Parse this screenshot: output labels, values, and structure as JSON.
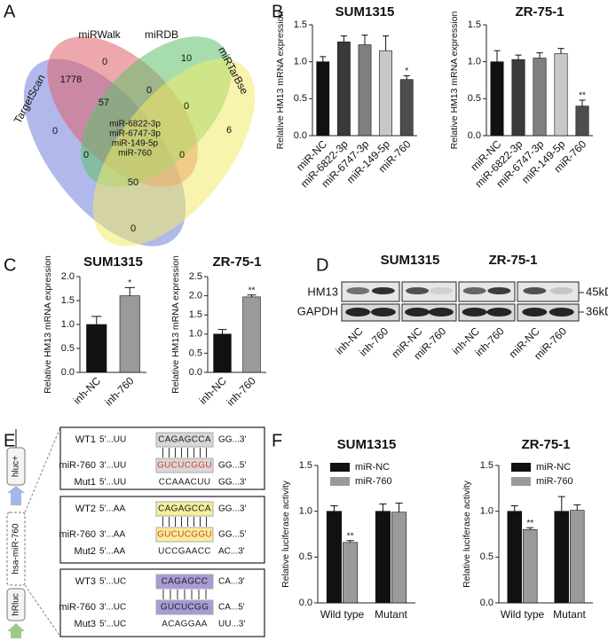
{
  "panel_labels": [
    "A",
    "B",
    "C",
    "D",
    "E",
    "F"
  ],
  "venn": {
    "sets": [
      "TargetScan",
      "miRWalk",
      "miRDB",
      "miRTarBse"
    ],
    "counts": [
      0,
      1778,
      0,
      10,
      57,
      0,
      0,
      6,
      0,
      0,
      50,
      0
    ],
    "shared_mirnas": [
      "miR-6822-3p",
      "miR-6747-3p",
      "miR-149-5p",
      "miR-760"
    ]
  },
  "chart_data": [
    {
      "type": "bar",
      "title": "SUM1315",
      "y_label": "Relative HM13 mRNA expression",
      "categories": [
        "miR-NC",
        "miR-6822-3p",
        "miR-6747-3p",
        "miR-149-5p",
        "miR-760"
      ],
      "values": [
        1.0,
        1.27,
        1.23,
        1.15,
        0.76
      ],
      "errors": [
        0.07,
        0.08,
        0.13,
        0.2,
        0.05
      ],
      "significance": [
        null,
        null,
        null,
        null,
        "*"
      ],
      "colors": [
        "#111111",
        "#3a3a3a",
        "#7f7f7f",
        "#c8c8c8",
        "#4d4d4d"
      ],
      "ylim": [
        0,
        1.5
      ],
      "yticks": [
        {
          "value": 0,
          "label": "0.0"
        },
        0.5,
        {
          "value": 1,
          "label": "1.0"
        },
        1.5
      ]
    },
    {
      "type": "bar",
      "title": "ZR-75-1",
      "y_label": "Relative HM13 mRNA expression",
      "categories": [
        "miR-NC",
        "miR-6822-3p",
        "miR-6747-3p",
        "miR-149-5p",
        "miR-760"
      ],
      "values": [
        1.0,
        1.03,
        1.05,
        1.11,
        0.4
      ],
      "errors": [
        0.15,
        0.06,
        0.07,
        0.07,
        0.08
      ],
      "significance": [
        null,
        null,
        null,
        null,
        "**"
      ],
      "colors": [
        "#111111",
        "#3a3a3a",
        "#7f7f7f",
        "#c8c8c8",
        "#4d4d4d"
      ],
      "ylim": [
        0,
        1.5
      ],
      "yticks": [
        {
          "value": 0,
          "label": "0.0"
        },
        0.5,
        {
          "value": 1,
          "label": "1.0"
        },
        1.5
      ]
    },
    {
      "type": "bar",
      "title": "SUM1315",
      "y_label": "Relative HM13 mRNA expression",
      "categories": [
        "inh-NC",
        "inh-760"
      ],
      "values": [
        1.0,
        1.6
      ],
      "errors": [
        0.17,
        0.17
      ],
      "significance": [
        null,
        "*"
      ],
      "colors": [
        "#111111",
        "#9a9a9a"
      ],
      "ylim": [
        0,
        2
      ],
      "yticks": [
        {
          "value": 0,
          "label": "0.0"
        },
        0.5,
        {
          "value": 1,
          "label": "1.0"
        },
        1.5,
        {
          "value": 2,
          "label": "2.0"
        }
      ]
    },
    {
      "type": "bar",
      "title": "ZR-75-1",
      "y_label": "Relative HM13 mRNA expression",
      "categories": [
        "inh-NC",
        "inh-760"
      ],
      "values": [
        1.0,
        1.97
      ],
      "errors": [
        0.12,
        0.05
      ],
      "significance": [
        null,
        "**"
      ],
      "colors": [
        "#111111",
        "#9a9a9a"
      ],
      "ylim": [
        0,
        2.5
      ],
      "yticks": [
        {
          "value": 0,
          "label": "0.0"
        },
        0.5,
        {
          "value": 1,
          "label": "1.0"
        },
        1.5,
        {
          "value": 2,
          "label": "2.0"
        },
        2.5
      ]
    },
    {
      "type": "bar",
      "title": "SUM1315",
      "y_label": "Relative luciferase activity",
      "categories": [
        "Wild type",
        "Mutant"
      ],
      "series": [
        {
          "name": "miR-NC",
          "color": "#111111",
          "values": [
            1.0,
            1.0
          ],
          "errors": [
            0.06,
            0.08
          ],
          "significance": [
            null,
            null
          ]
        },
        {
          "name": "miR-760",
          "color": "#9a9a9a",
          "values": [
            0.66,
            0.99
          ],
          "errors": [
            0.02,
            0.1
          ],
          "significance": [
            "**",
            null
          ]
        }
      ],
      "ylim": [
        0,
        1.5
      ],
      "yticks": [
        {
          "value": 0,
          "label": "0.0"
        },
        0.5,
        {
          "value": 1,
          "label": "1.0"
        },
        1.5
      ]
    },
    {
      "type": "bar",
      "title": "ZR-75-1",
      "y_label": "Relative luciferase activity",
      "categories": [
        "Wild type",
        "Mutant"
      ],
      "series": [
        {
          "name": "miR-NC",
          "color": "#111111",
          "values": [
            1.0,
            1.0
          ],
          "errors": [
            0.06,
            0.16
          ],
          "significance": [
            null,
            null
          ]
        },
        {
          "name": "miR-760",
          "color": "#9a9a9a",
          "values": [
            0.8,
            1.01
          ],
          "errors": [
            0.02,
            0.06
          ],
          "significance": [
            "**",
            null
          ]
        }
      ],
      "ylim": [
        0,
        1.5
      ],
      "yticks": [
        {
          "value": 0,
          "label": "0.0"
        },
        0.5,
        {
          "value": 1,
          "label": "1.0"
        },
        1.5
      ]
    }
  ],
  "blot": {
    "cell_lines": [
      "SUM1315",
      "ZR-75-1"
    ],
    "proteins": [
      "HM13",
      "GAPDH"
    ],
    "sizes": [
      "45kD",
      "36kD"
    ],
    "lanes": [
      "inh-NC",
      "inh-760",
      "miR-NC",
      "miR-760",
      "inh-NC",
      "inh-760",
      "miR-NC",
      "miR-760"
    ]
  },
  "construct": [
    "hluc+",
    "hsa-miR-760",
    "hRluc"
  ],
  "sequence_panels": [
    {
      "rows": [
        {
          "name": "WT1",
          "left": "5'...UU",
          "core": "CAGAGCCA",
          "right": "GG...3'"
        },
        {
          "name": "miR-760",
          "left": "3'...UU",
          "core": "GUCUCGGU",
          "right": "GG...5'"
        },
        {
          "name": "Mut1",
          "left": "5'...UU",
          "core": "CCAAACUU",
          "right": "GG...3'"
        }
      ]
    },
    {
      "rows": [
        {
          "name": "WT2",
          "left": "5'...AA",
          "core": "CAGAGCCA",
          "right": "GG...3'"
        },
        {
          "name": "miR-760",
          "left": "3'...AA",
          "core": "GUCUCGGU",
          "right": "GG...5'"
        },
        {
          "name": "Mut2",
          "left": "5'...AA",
          "core": "UCCGAACC",
          "right": "AC...3'"
        }
      ]
    },
    {
      "rows": [
        {
          "name": "WT3",
          "left": "5'...UC",
          "core": "CAGAGCC",
          "right": "CA...3'"
        },
        {
          "name": "miR-760",
          "left": "3'...UC",
          "core": "GUCUCGG",
          "right": "CA...5'"
        },
        {
          "name": "Mut3",
          "left": "5'...UC",
          "core": "ACAGGAA",
          "right": "UU...3'"
        }
      ]
    }
  ]
}
